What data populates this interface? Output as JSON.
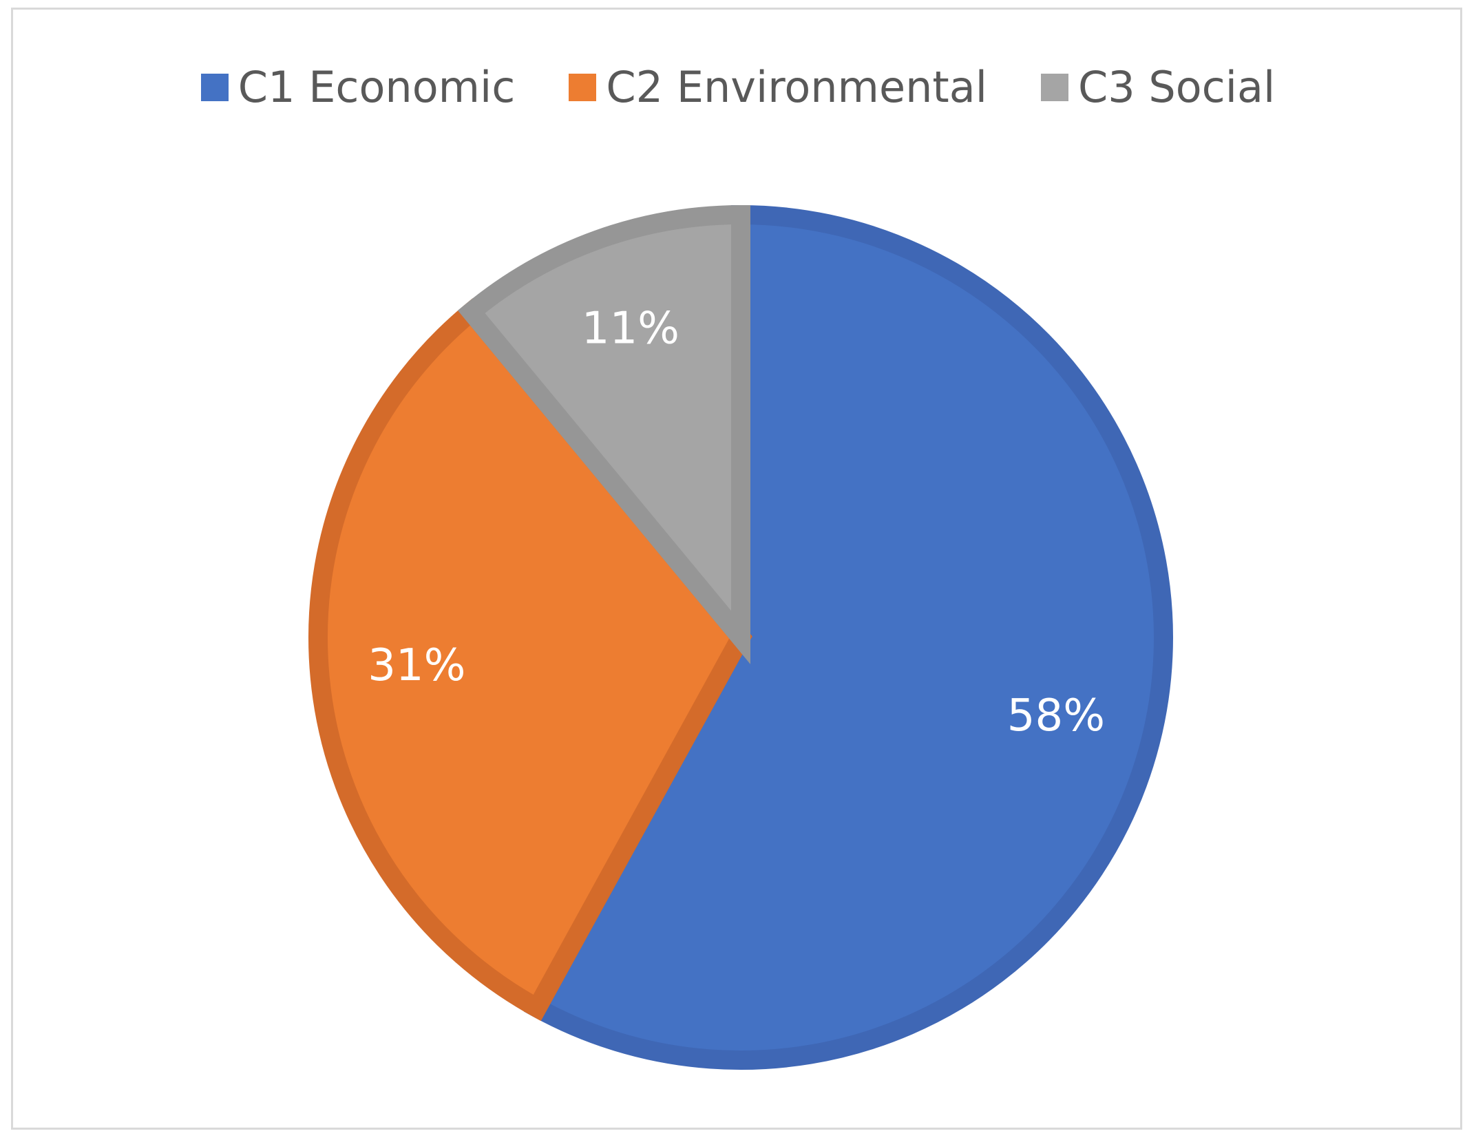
{
  "chart_data": {
    "type": "pie",
    "categories": [
      "C1 Economic",
      "C2 Environmental",
      "C3 Social"
    ],
    "values": [
      58,
      31,
      11
    ],
    "value_labels": [
      "58%",
      "31%",
      "11%"
    ],
    "colors": [
      "#4472C4",
      "#ED7D31",
      "#A5A5A5"
    ],
    "border_colors": [
      "#3F67B5",
      "#D46B2A",
      "#969696"
    ],
    "legend_position": "top",
    "start_angle_deg": 0,
    "direction": "clockwise"
  }
}
